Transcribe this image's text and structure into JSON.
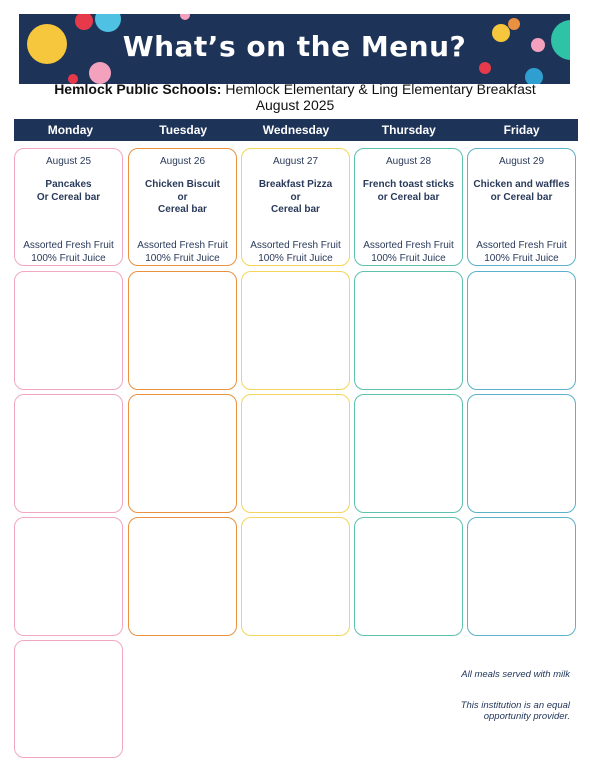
{
  "banner": {
    "title": "What’s on the Menu?"
  },
  "header": {
    "district": "Hemlock Public Schools:",
    "schools": "Hemlock Elementary & Ling Elementary Breakfast",
    "month": "August 2025"
  },
  "days": [
    "Monday",
    "Tuesday",
    "Wednesday",
    "Thursday",
    "Friday"
  ],
  "week1": [
    {
      "date": "August 25",
      "entree_lines": [
        "Pancakes",
        "Or Cereal bar"
      ],
      "sides": [
        "Assorted Fresh Fruit",
        "100% Fruit Juice"
      ]
    },
    {
      "date": "August 26",
      "entree_lines": [
        "Chicken Biscuit",
        "or",
        "Cereal bar"
      ],
      "sides": [
        "Assorted Fresh Fruit",
        "100% Fruit Juice"
      ]
    },
    {
      "date": "August 27",
      "entree_lines": [
        "Breakfast Pizza",
        "or",
        "Cereal bar"
      ],
      "sides": [
        "Assorted Fresh Fruit",
        "100% Fruit Juice"
      ]
    },
    {
      "date": "August 28",
      "entree_lines": [
        "French toast sticks",
        "or Cereal bar"
      ],
      "sides": [
        "Assorted Fresh Fruit",
        "100% Fruit Juice"
      ]
    },
    {
      "date": "August 29",
      "entree_lines": [
        "Chicken and waffles",
        "or Cereal bar"
      ],
      "sides": [
        "Assorted Fresh Fruit",
        "100% Fruit Juice"
      ]
    }
  ],
  "footnotes": {
    "milk": "All meals served with milk",
    "equal_opportunity": "This institution is an equal opportunity provider."
  },
  "colors": {
    "navy": "#1e3358",
    "pink": "#f2a7c0",
    "orange": "#e9913f",
    "yellow": "#f3d45c",
    "teal": "#5dc1ae",
    "blue": "#5db0c9"
  }
}
